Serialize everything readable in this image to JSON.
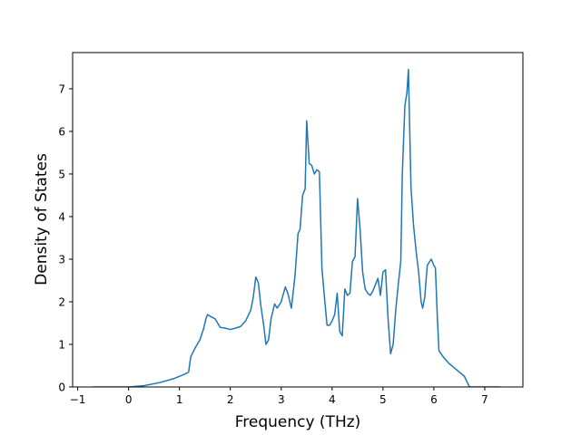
{
  "chart_data": {
    "type": "line",
    "xlabel": "Frequency (THz)",
    "ylabel": "Density of States",
    "xlim": [
      -1.1,
      7.75
    ],
    "ylim": [
      0,
      7.85
    ],
    "grid": false,
    "x_ticks": [
      -1,
      0,
      1,
      2,
      3,
      4,
      5,
      6,
      7
    ],
    "y_ticks": [
      0,
      1,
      2,
      3,
      4,
      5,
      6,
      7
    ],
    "x_tick_labels": [
      "−1",
      "0",
      "1",
      "2",
      "3",
      "4",
      "5",
      "6",
      "7"
    ],
    "y_tick_labels": [
      "0",
      "1",
      "2",
      "3",
      "4",
      "5",
      "6",
      "7"
    ],
    "series": [
      {
        "color": "#1f77b4",
        "x": [
          -0.7,
          0.0,
          0.3,
          0.6,
          0.9,
          1.1,
          1.18,
          1.22,
          1.3,
          1.4,
          1.47,
          1.52,
          1.55,
          1.62,
          1.7,
          1.75,
          1.8,
          1.9,
          2.0,
          2.1,
          2.2,
          2.3,
          2.4,
          2.45,
          2.5,
          2.55,
          2.6,
          2.65,
          2.7,
          2.75,
          2.8,
          2.87,
          2.92,
          3.0,
          3.08,
          3.13,
          3.2,
          3.27,
          3.33,
          3.37,
          3.42,
          3.47,
          3.5,
          3.55,
          3.6,
          3.65,
          3.7,
          3.75,
          3.8,
          3.85,
          3.9,
          3.95,
          4.0,
          4.05,
          4.1,
          4.15,
          4.2,
          4.25,
          4.3,
          4.35,
          4.4,
          4.45,
          4.5,
          4.55,
          4.6,
          4.65,
          4.7,
          4.75,
          4.8,
          4.85,
          4.9,
          4.95,
          5.0,
          5.05,
          5.1,
          5.15,
          5.2,
          5.25,
          5.3,
          5.35,
          5.38,
          5.43,
          5.47,
          5.5,
          5.55,
          5.6,
          5.65,
          5.7,
          5.75,
          5.78,
          5.82,
          5.87,
          5.92,
          5.95,
          6.0,
          6.03,
          6.07,
          6.1,
          6.2,
          6.3,
          6.4,
          6.5,
          6.6,
          6.7,
          6.8,
          7.0,
          7.2,
          7.3
        ],
        "y": [
          0.0,
          0.0,
          0.03,
          0.1,
          0.2,
          0.3,
          0.35,
          0.7,
          0.9,
          1.1,
          1.35,
          1.6,
          1.7,
          1.65,
          1.6,
          1.5,
          1.4,
          1.38,
          1.35,
          1.38,
          1.42,
          1.55,
          1.8,
          2.1,
          2.58,
          2.45,
          1.9,
          1.5,
          1.0,
          1.1,
          1.6,
          1.95,
          1.85,
          2.0,
          2.35,
          2.2,
          1.85,
          2.6,
          3.6,
          3.7,
          4.5,
          4.65,
          6.25,
          5.25,
          5.2,
          5.0,
          5.1,
          5.05,
          2.8,
          2.1,
          1.45,
          1.45,
          1.55,
          1.7,
          2.2,
          1.3,
          1.2,
          2.3,
          2.15,
          2.2,
          2.95,
          3.05,
          4.42,
          3.7,
          2.7,
          2.3,
          2.2,
          2.15,
          2.25,
          2.4,
          2.55,
          2.15,
          2.7,
          2.75,
          1.6,
          0.78,
          1.0,
          1.8,
          2.4,
          2.95,
          5.0,
          6.6,
          6.9,
          7.45,
          4.7,
          3.8,
          3.2,
          2.7,
          2.0,
          1.85,
          2.1,
          2.85,
          2.95,
          3.0,
          2.85,
          2.8,
          1.6,
          0.85,
          0.68,
          0.55,
          0.45,
          0.35,
          0.25,
          0.0,
          0.0,
          0.0,
          0.0,
          0.0
        ]
      }
    ]
  }
}
